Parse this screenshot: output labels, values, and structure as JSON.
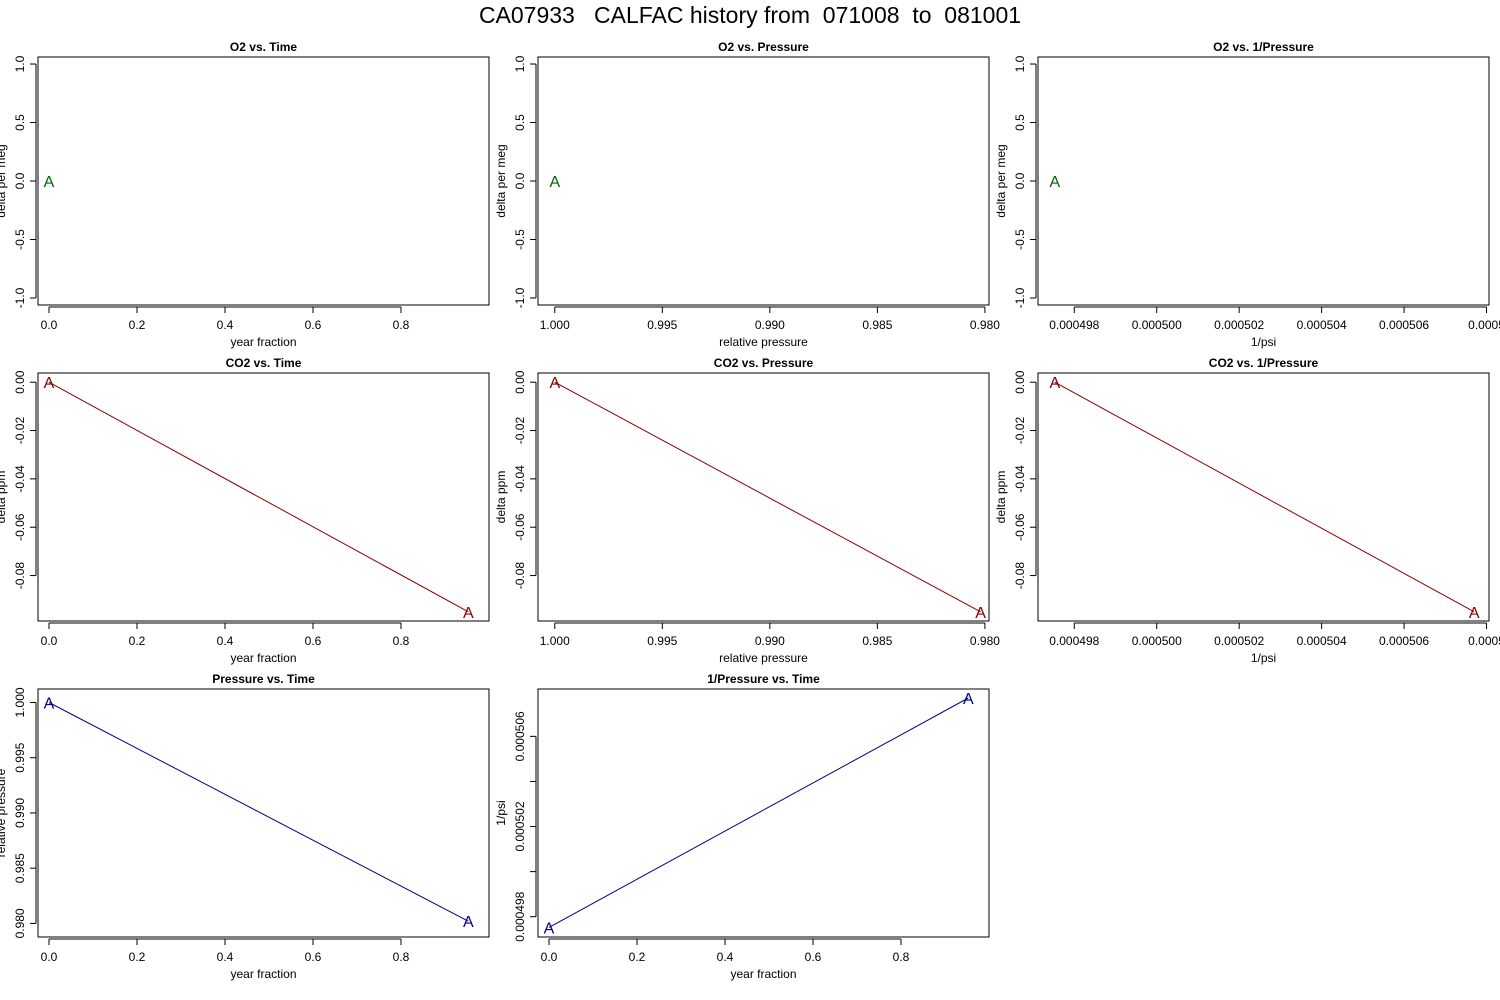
{
  "page_title": "CA07933   CALFAC history from  071008  to  081001",
  "colors": {
    "o2": "#006400",
    "co2": "#8b0000",
    "pressure": "#00008b",
    "frame": "#000000"
  },
  "point_label": "A",
  "chart_data": [
    {
      "id": "o2-vs-time",
      "type": "line",
      "title": "O2 vs. Time",
      "xlabel": "year fraction",
      "ylabel": "delta per meg",
      "xlim": [
        -0.025,
        1.0
      ],
      "ylim": [
        -1.06,
        1.06
      ],
      "xticks": [
        0.0,
        0.2,
        0.4,
        0.6,
        0.8
      ],
      "xtick_labels": [
        "0.0",
        "0.2",
        "0.4",
        "0.6",
        "0.8"
      ],
      "yticks": [
        -1.0,
        -0.5,
        0.0,
        0.5,
        1.0
      ],
      "ytick_labels": [
        "-1.0",
        "-0.5",
        "0.0",
        "0.5",
        "1.0"
      ],
      "color": "o2",
      "series": [
        {
          "points": [
            [
              0.0,
              0.0
            ]
          ],
          "labels": [
            "A"
          ]
        }
      ]
    },
    {
      "id": "o2-vs-pressure",
      "type": "line",
      "title": "O2 vs. Pressure",
      "xlabel": "relative pressure",
      "ylabel": "delta per meg",
      "xlim": [
        1.00078,
        0.97981
      ],
      "ylim": [
        -1.06,
        1.06
      ],
      "xticks": [
        1.0,
        0.995,
        0.99,
        0.985,
        0.98
      ],
      "xtick_labels": [
        "1.000",
        "0.995",
        "0.990",
        "0.985",
        "0.980"
      ],
      "yticks": [
        -1.0,
        -0.5,
        0.0,
        0.5,
        1.0
      ],
      "ytick_labels": [
        "-1.0",
        "-0.5",
        "0.0",
        "0.5",
        "1.0"
      ],
      "color": "o2",
      "series": [
        {
          "points": [
            [
              1.0,
              0.0
            ]
          ],
          "labels": [
            "A"
          ]
        }
      ]
    },
    {
      "id": "o2-vs-inverse-pressure",
      "type": "line",
      "title": "O2 vs. 1/Pressure",
      "xlabel": "1/psi",
      "ylabel": "delta per meg",
      "xlim": [
        0.00049712,
        0.00050806
      ],
      "ylim": [
        -1.06,
        1.06
      ],
      "xticks": [
        0.000498,
        0.0005,
        0.000502,
        0.000504,
        0.000506,
        0.000508
      ],
      "xtick_labels": [
        "0.000498",
        "0.000500",
        "0.000502",
        "0.000504",
        "0.000506",
        "0.0005"
      ],
      "yticks": [
        -1.0,
        -0.5,
        0.0,
        0.5,
        1.0
      ],
      "ytick_labels": [
        "-1.0",
        "-0.5",
        "0.0",
        "0.5",
        "1.0"
      ],
      "color": "o2",
      "series": [
        {
          "points": [
            [
              0.000497527,
              0.0
            ]
          ],
          "labels": [
            "A"
          ]
        }
      ]
    },
    {
      "id": "co2-vs-time",
      "type": "line",
      "title": "CO2 vs. Time",
      "xlabel": "year fraction",
      "ylabel": "delta ppm",
      "xlim": [
        -0.025,
        1.0
      ],
      "ylim": [
        -0.0988,
        0.0038
      ],
      "xticks": [
        0.0,
        0.2,
        0.4,
        0.6,
        0.8
      ],
      "xtick_labels": [
        "0.0",
        "0.2",
        "0.4",
        "0.6",
        "0.8"
      ],
      "yticks": [
        -0.08,
        -0.06,
        -0.04,
        -0.02,
        0.0
      ],
      "ytick_labels": [
        "-0.08",
        "-0.06",
        "-0.04",
        "-0.02",
        "0.00"
      ],
      "color": "co2",
      "series": [
        {
          "points": [
            [
              0.0,
              0.0
            ],
            [
              0.953,
              -0.095
            ]
          ],
          "labels": [
            "A",
            "A"
          ]
        }
      ]
    },
    {
      "id": "co2-vs-pressure",
      "type": "line",
      "title": "CO2 vs. Pressure",
      "xlabel": "relative pressure",
      "ylabel": "delta ppm",
      "xlim": [
        1.00078,
        0.97981
      ],
      "ylim": [
        -0.0988,
        0.0038
      ],
      "xticks": [
        1.0,
        0.995,
        0.99,
        0.985,
        0.98
      ],
      "xtick_labels": [
        "1.000",
        "0.995",
        "0.990",
        "0.985",
        "0.980"
      ],
      "yticks": [
        -0.08,
        -0.06,
        -0.04,
        -0.02,
        0.0
      ],
      "ytick_labels": [
        "-0.08",
        "-0.06",
        "-0.04",
        "-0.02",
        "0.00"
      ],
      "color": "co2",
      "series": [
        {
          "points": [
            [
              1.0,
              0.0
            ],
            [
              0.9802,
              -0.095
            ]
          ],
          "labels": [
            "A",
            "A"
          ]
        }
      ]
    },
    {
      "id": "co2-vs-inverse-pressure",
      "type": "line",
      "title": "CO2 vs. 1/Pressure",
      "xlabel": "1/psi",
      "ylabel": "delta ppm",
      "xlim": [
        0.00049712,
        0.00050806
      ],
      "ylim": [
        -0.0988,
        0.0038
      ],
      "xticks": [
        0.000498,
        0.0005,
        0.000502,
        0.000504,
        0.000506,
        0.000508
      ],
      "xtick_labels": [
        "0.000498",
        "0.000500",
        "0.000502",
        "0.000504",
        "0.000506",
        "0.0005"
      ],
      "yticks": [
        -0.08,
        -0.06,
        -0.04,
        -0.02,
        0.0
      ],
      "ytick_labels": [
        "-0.08",
        "-0.06",
        "-0.04",
        "-0.02",
        "0.00"
      ],
      "color": "co2",
      "series": [
        {
          "points": [
            [
              0.000497527,
              0.0
            ],
            [
              0.0005077,
              -0.095
            ]
          ],
          "labels": [
            "A",
            "A"
          ]
        }
      ]
    },
    {
      "id": "pressure-vs-time",
      "type": "line",
      "title": "Pressure vs. Time",
      "xlabel": "year fraction",
      "ylabel": "relative pressure",
      "xlim": [
        -0.025,
        1.0
      ],
      "ylim": [
        0.97877,
        1.00122
      ],
      "xticks": [
        0.0,
        0.2,
        0.4,
        0.6,
        0.8
      ],
      "xtick_labels": [
        "0.0",
        "0.2",
        "0.4",
        "0.6",
        "0.8"
      ],
      "yticks": [
        0.98,
        0.985,
        0.99,
        0.995,
        1.0
      ],
      "ytick_labels": [
        "0.980",
        "0.985",
        "0.990",
        "0.995",
        "1.000"
      ],
      "color": "pressure",
      "series": [
        {
          "points": [
            [
              0.0,
              1.0
            ],
            [
              0.953,
              0.9802
            ]
          ],
          "labels": [
            "A",
            "A"
          ]
        }
      ]
    },
    {
      "id": "inverse-pressure-vs-time",
      "type": "line",
      "title": "1/Pressure vs. Time",
      "xlabel": "year fraction",
      "ylabel": "1/psi",
      "xlim": [
        -0.025,
        1.0
      ],
      "ylim": [
        0.0004971,
        0.0005081
      ],
      "xticks": [
        0.0,
        0.2,
        0.4,
        0.6,
        0.8
      ],
      "xtick_labels": [
        "0.0",
        "0.2",
        "0.4",
        "0.6",
        "0.8"
      ],
      "yticks": [
        0.000498,
        0.0005,
        0.000502,
        0.000504,
        0.000506
      ],
      "ytick_labels": [
        "0.000498",
        "",
        "0.000502",
        "",
        "0.000506"
      ],
      "color": "pressure",
      "series": [
        {
          "points": [
            [
              0.0,
              0.000497527
            ],
            [
              0.953,
              0.0005077
            ]
          ],
          "labels": [
            "A",
            "A"
          ]
        }
      ]
    }
  ]
}
